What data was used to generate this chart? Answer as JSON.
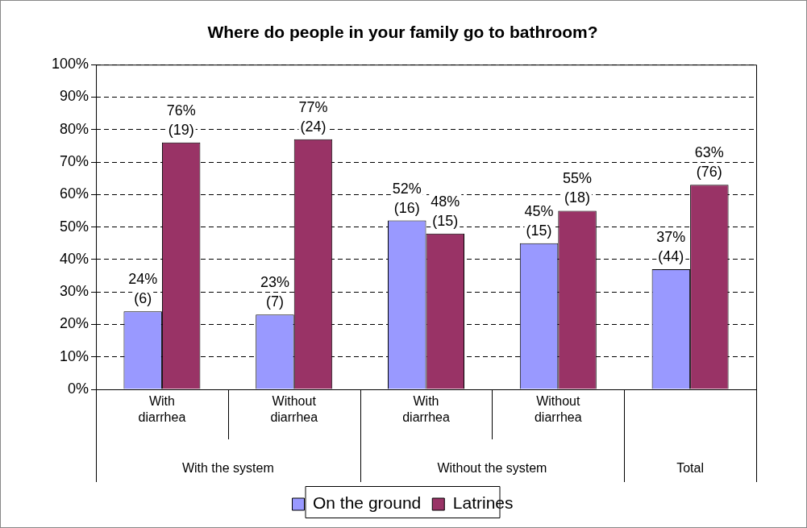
{
  "chart_data": {
    "type": "bar",
    "title": "Where do people in your family go to bathroom?",
    "categories": [
      "With diarrhea",
      "Without diarrhea",
      "With diarrhea",
      "Without diarrhea",
      null
    ],
    "annotations": [
      "With the system",
      "Without the system",
      "Total"
    ],
    "series": [
      {
        "name": "On the ground",
        "color": "#9999ff",
        "values": [
          24,
          23,
          52,
          45,
          37
        ],
        "value_labels": [
          "24%\n(6)",
          "23%\n(7)",
          "52%\n(16)",
          "45%\n(15)",
          "37%\n(44)"
        ]
      },
      {
        "name": "Latrines",
        "color": "#993366",
        "values": [
          76,
          77,
          48,
          55,
          63
        ],
        "value_labels": [
          "76%\n(19)",
          "77%\n(24)",
          "48%\n(15)",
          "55%\n(18)",
          "63%\n(76)"
        ]
      }
    ],
    "ylim": [
      0,
      100
    ],
    "yticks": [
      {
        "value": 0,
        "label": "0%"
      },
      {
        "value": 10,
        "label": "10%"
      },
      {
        "value": 20,
        "label": "20%"
      },
      {
        "value": 30,
        "label": "30%"
      },
      {
        "value": 40,
        "label": "40%"
      },
      {
        "value": 50,
        "label": "50%"
      },
      {
        "value": 60,
        "label": "60%"
      },
      {
        "value": 70,
        "label": "70%"
      },
      {
        "value": 80,
        "label": "80%"
      },
      {
        "value": 90,
        "label": "90%"
      },
      {
        "value": 100,
        "label": "100%"
      }
    ],
    "grid": "y",
    "line_style": "dashed",
    "legend": "bottom"
  }
}
